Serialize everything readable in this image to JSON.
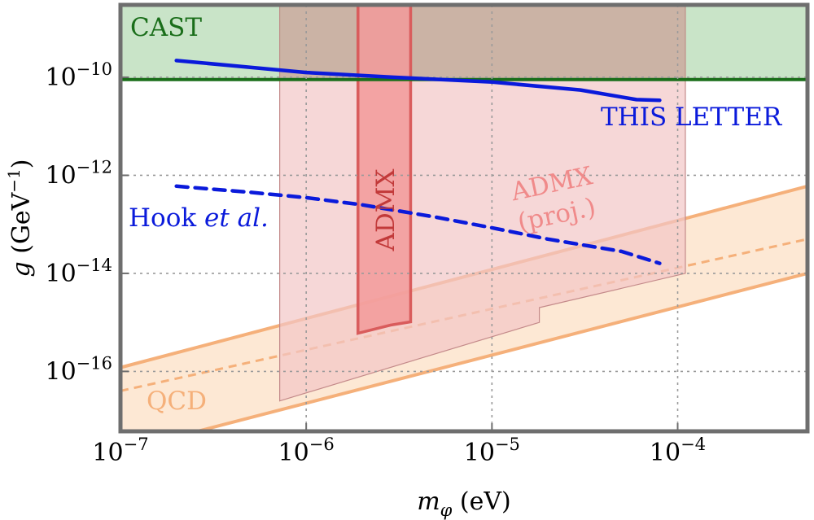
{
  "chart_data": {
    "type": "area",
    "title": "",
    "xlabel": {
      "symbol": "m",
      "subscript": "φ",
      "unit": " (eV)"
    },
    "ylabel": {
      "symbol": "g",
      "unit": " (GeV",
      "unit_exp": "−1",
      "unit_close": ")"
    },
    "x_scale": "log",
    "y_scale": "log",
    "xlim": [
      1e-07,
      0.0005
    ],
    "ylim": [
      6e-18,
      3e-09
    ],
    "grid": true,
    "x_ticks": [
      {
        "value": 1e-07,
        "base": "10",
        "exp": "−7"
      },
      {
        "value": 1e-06,
        "base": "10",
        "exp": "−6"
      },
      {
        "value": 1e-05,
        "base": "10",
        "exp": "−5"
      },
      {
        "value": 0.0001,
        "base": "10",
        "exp": "−4"
      }
    ],
    "y_ticks": [
      {
        "value": 1e-10,
        "base": "10",
        "exp": "−10"
      },
      {
        "value": 1e-12,
        "base": "10",
        "exp": "−12"
      },
      {
        "value": 1e-14,
        "base": "10",
        "exp": "−14"
      },
      {
        "value": 1e-16,
        "base": "10",
        "exp": "−16"
      }
    ],
    "regions": [
      {
        "name": "CAST",
        "label": "CAST",
        "fill": "#c9e4c8",
        "stroke": "#1a6e1a",
        "x": [
          1e-07,
          0.0005
        ],
        "y_lower": 9e-11
      },
      {
        "name": "ADMX (proj.)",
        "label_line1": "ADMX",
        "label_line2": "(proj.)",
        "fill": "#f2c6c6",
        "stroke": "#c48a8a",
        "polygon": [
          [
            7.2e-07,
            2.5e-17
          ],
          [
            0.00011,
            1e-14
          ],
          [
            0.00011,
            3e-09
          ],
          [
            7.2e-07,
            3e-09
          ],
          [
            7.2e-07,
            2.5e-17
          ]
        ]
      },
      {
        "name": "ADMX",
        "label": "ADMX",
        "fill": "#f29a9a",
        "stroke": "#d95c5c",
        "x": [
          1.9e-06,
          3.65e-06
        ],
        "y": [
          6e-16,
          3e-09
        ]
      },
      {
        "name": "QCD",
        "label": "QCD",
        "fill": "#fde8d4",
        "stroke": "#f5b07a",
        "band_upper": [
          [
            1e-07,
            1.2e-16
          ],
          [
            0.0005,
            6e-13
          ]
        ],
        "band_lower": [
          [
            2.6e-07,
            6e-18
          ],
          [
            0.0005,
            1e-14
          ]
        ],
        "center": [
          [
            1e-07,
            4e-17
          ],
          [
            0.0005,
            5e-14
          ]
        ]
      }
    ],
    "series": [
      {
        "name": "THIS LETTER",
        "label": "THIS LETTER",
        "color": "#0a1adb",
        "style": "solid",
        "x": [
          2e-07,
          5e-07,
          1e-06,
          3e-06,
          1e-05,
          3e-05,
          6e-05,
          8e-05
        ],
        "y": [
          2.2e-10,
          1.6e-10,
          1.25e-10,
          1e-10,
          8e-11,
          5.5e-11,
          3.5e-11,
          3.4e-11
        ]
      },
      {
        "name": "Hook et al.",
        "label_plain": "Hook ",
        "label_italic": "et al.",
        "color": "#0a1adb",
        "style": "dashed",
        "x": [
          2e-07,
          5e-07,
          1e-06,
          2e-06,
          5e-06,
          1e-05,
          2e-05,
          5e-05,
          8e-05
        ],
        "y": [
          6e-13,
          4.5e-13,
          3.5e-13,
          2.5e-13,
          1.4e-13,
          8.5e-14,
          5e-14,
          2.8e-14,
          1.6e-14
        ]
      }
    ]
  }
}
